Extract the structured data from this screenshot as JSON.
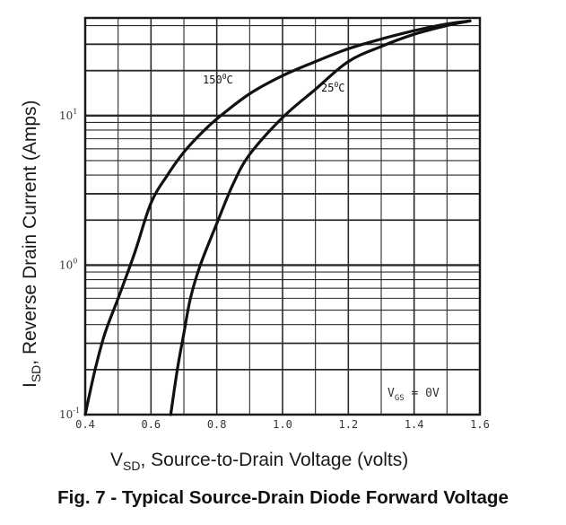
{
  "chart_data": {
    "type": "line",
    "caption": "Fig. 7 - Typical Source-Drain Diode Forward Voltage",
    "xlabel": {
      "main": "V",
      "sub": "SD",
      "rest": ", Source-to-Drain Voltage (volts)"
    },
    "ylabel": {
      "main": "I",
      "sub": "SD",
      "rest": ", Reverse Drain Current (Amps)"
    },
    "xlim": [
      0.4,
      1.6
    ],
    "ylim": [
      0.1,
      45
    ],
    "yscale": "log",
    "x_ticks": [
      "0.4",
      "0.6",
      "0.8",
      "1.0",
      "1.2",
      "1.4",
      "1.6"
    ],
    "y_ticks": [
      {
        "value": 10,
        "base": "10",
        "exp": "1"
      },
      {
        "value": 1,
        "base": "10",
        "exp": "0"
      },
      {
        "value": 0.1,
        "base": "10",
        "exp": "-1"
      }
    ],
    "grid": true,
    "annotation": {
      "main": "V",
      "sub": "GS",
      "rest": " = 0V"
    },
    "series": [
      {
        "name": "150°C",
        "label_main": "150",
        "label_deg": "0",
        "label_unit": "C",
        "x": [
          0.4,
          0.43,
          0.46,
          0.5,
          0.55,
          0.6,
          0.65,
          0.7,
          0.75,
          0.8,
          0.9,
          1.0,
          1.1,
          1.2,
          1.3,
          1.4,
          1.5,
          1.57
        ],
        "y": [
          0.1,
          0.2,
          0.35,
          0.6,
          1.2,
          2.6,
          4.0,
          5.7,
          7.5,
          9.5,
          14.0,
          18.5,
          23.0,
          28.0,
          32.5,
          37.0,
          41.0,
          43.0
        ]
      },
      {
        "name": "25°C",
        "label_main": "25",
        "label_deg": "0",
        "label_unit": "C",
        "x": [
          0.66,
          0.68,
          0.7,
          0.72,
          0.75,
          0.8,
          0.85,
          0.9,
          1.0,
          1.1,
          1.2,
          1.3,
          1.4,
          1.5,
          1.57
        ],
        "y": [
          0.1,
          0.2,
          0.35,
          0.6,
          1.0,
          1.9,
          3.5,
          5.5,
          9.7,
          15.0,
          23.0,
          29.0,
          35.0,
          40.0,
          43.0
        ]
      }
    ]
  }
}
